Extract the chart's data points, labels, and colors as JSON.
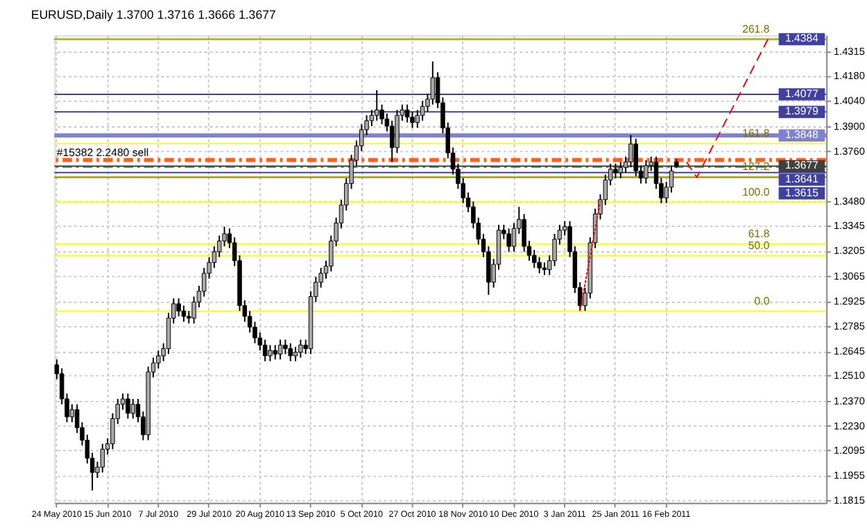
{
  "chart_data": {
    "type": "candlestick",
    "title": "EURUSD,Daily  1.3700 1.3716 1.3666 1.3677",
    "categories": [
      "24 May 2010",
      null,
      null,
      null,
      null,
      null,
      null,
      null,
      null,
      null,
      "15 Jun 2010",
      null,
      null,
      null,
      null,
      null,
      null,
      null,
      null,
      null,
      "7 Jul 2010",
      null,
      null,
      null,
      null,
      null,
      null,
      null,
      null,
      null,
      "29 Jul 2010",
      null,
      null,
      null,
      null,
      null,
      null,
      null,
      null,
      null,
      "20 Aug 2010",
      null,
      null,
      null,
      null,
      null,
      null,
      null,
      null,
      null,
      "13 Sep 2010",
      null,
      null,
      null,
      null,
      null,
      null,
      null,
      null,
      null,
      "5 Oct 2010",
      null,
      null,
      null,
      null,
      null,
      null,
      null,
      null,
      null,
      "27 Oct 2010",
      null,
      null,
      null,
      null,
      null,
      null,
      null,
      null,
      null,
      "18 Nov 2010",
      null,
      null,
      null,
      null,
      null,
      null,
      null,
      null,
      null,
      "10 Dec 2010",
      null,
      null,
      null,
      null,
      null,
      null,
      null,
      null,
      null,
      "3 Jan 2011",
      null,
      null,
      null,
      null,
      null,
      null,
      null,
      null,
      null,
      "25 Jan 2011",
      null,
      null,
      null,
      null,
      null,
      null,
      null,
      null,
      null,
      "16 Feb 2011",
      null,
      null,
      null,
      null,
      null,
      null,
      null,
      null,
      null,
      null,
      null,
      null,
      null,
      null,
      null,
      null,
      null,
      null,
      null,
      null,
      null,
      null,
      null,
      null,
      null,
      null,
      null,
      null,
      null,
      null,
      null
    ],
    "ohlc": [
      [
        1.257,
        1.26,
        1.249,
        1.252
      ],
      [
        1.252,
        1.255,
        1.235,
        1.238
      ],
      [
        1.238,
        1.241,
        1.225,
        1.228
      ],
      [
        1.228,
        1.235,
        1.225,
        1.232
      ],
      [
        1.232,
        1.235,
        1.219,
        1.222
      ],
      [
        1.222,
        1.225,
        1.212,
        1.215
      ],
      [
        1.215,
        1.218,
        1.202,
        1.205
      ],
      [
        1.205,
        1.208,
        1.187,
        1.197
      ],
      [
        1.197,
        1.203,
        1.194,
        1.2
      ],
      [
        1.2,
        1.213,
        1.197,
        1.21
      ],
      [
        1.21,
        1.216,
        1.207,
        1.213
      ],
      [
        1.213,
        1.23,
        1.21,
        1.227
      ],
      [
        1.227,
        1.238,
        1.224,
        1.235
      ],
      [
        1.235,
        1.241,
        1.232,
        1.238
      ],
      [
        1.238,
        1.241,
        1.227,
        1.23
      ],
      [
        1.23,
        1.238,
        1.227,
        1.235
      ],
      [
        1.235,
        1.238,
        1.225,
        1.228
      ],
      [
        1.228,
        1.231,
        1.215,
        1.218
      ],
      [
        1.218,
        1.256,
        1.215,
        1.253
      ],
      [
        1.253,
        1.261,
        1.25,
        1.258
      ],
      [
        1.258,
        1.265,
        1.255,
        1.262
      ],
      [
        1.262,
        1.269,
        1.259,
        1.266
      ],
      [
        1.266,
        1.286,
        1.263,
        1.283
      ],
      [
        1.283,
        1.294,
        1.28,
        1.291
      ],
      [
        1.291,
        1.294,
        1.284,
        1.287
      ],
      [
        1.287,
        1.29,
        1.281,
        1.284
      ],
      [
        1.284,
        1.287,
        1.28,
        1.283
      ],
      [
        1.283,
        1.295,
        1.28,
        1.292
      ],
      [
        1.292,
        1.301,
        1.289,
        1.298
      ],
      [
        1.298,
        1.311,
        1.295,
        1.308
      ],
      [
        1.308,
        1.317,
        1.305,
        1.314
      ],
      [
        1.314,
        1.323,
        1.311,
        1.32
      ],
      [
        1.32,
        1.329,
        1.317,
        1.326
      ],
      [
        1.326,
        1.334,
        1.323,
        1.33
      ],
      [
        1.33,
        1.333,
        1.322,
        1.325
      ],
      [
        1.325,
        1.328,
        1.312,
        1.315
      ],
      [
        1.315,
        1.318,
        1.287,
        1.29
      ],
      [
        1.29,
        1.293,
        1.281,
        1.284
      ],
      [
        1.284,
        1.287,
        1.275,
        1.278
      ],
      [
        1.278,
        1.281,
        1.269,
        1.272
      ],
      [
        1.272,
        1.275,
        1.265,
        1.268
      ],
      [
        1.268,
        1.271,
        1.259,
        1.262
      ],
      [
        1.262,
        1.268,
        1.259,
        1.265
      ],
      [
        1.265,
        1.268,
        1.26,
        1.263
      ],
      [
        1.263,
        1.271,
        1.26,
        1.268
      ],
      [
        1.268,
        1.271,
        1.263,
        1.266
      ],
      [
        1.266,
        1.269,
        1.259,
        1.262
      ],
      [
        1.262,
        1.267,
        1.259,
        1.264
      ],
      [
        1.264,
        1.271,
        1.261,
        1.268
      ],
      [
        1.268,
        1.271,
        1.263,
        1.266
      ],
      [
        1.266,
        1.298,
        1.263,
        1.295
      ],
      [
        1.295,
        1.306,
        1.292,
        1.303
      ],
      [
        1.303,
        1.311,
        1.3,
        1.308
      ],
      [
        1.308,
        1.315,
        1.305,
        1.312
      ],
      [
        1.312,
        1.329,
        1.309,
        1.326
      ],
      [
        1.326,
        1.339,
        1.323,
        1.336
      ],
      [
        1.336,
        1.349,
        1.333,
        1.346
      ],
      [
        1.346,
        1.361,
        1.343,
        1.358
      ],
      [
        1.358,
        1.374,
        1.355,
        1.371
      ],
      [
        1.371,
        1.382,
        1.368,
        1.379
      ],
      [
        1.379,
        1.391,
        1.376,
        1.388
      ],
      [
        1.388,
        1.396,
        1.385,
        1.393
      ],
      [
        1.393,
        1.399,
        1.39,
        1.396
      ],
      [
        1.396,
        1.41,
        1.393,
        1.399
      ],
      [
        1.399,
        1.402,
        1.391,
        1.394
      ],
      [
        1.394,
        1.397,
        1.387,
        1.39
      ],
      [
        1.39,
        1.393,
        1.37,
        1.378
      ],
      [
        1.378,
        1.399,
        1.375,
        1.396
      ],
      [
        1.396,
        1.402,
        1.393,
        1.399
      ],
      [
        1.399,
        1.402,
        1.392,
        1.395
      ],
      [
        1.395,
        1.398,
        1.389,
        1.392
      ],
      [
        1.392,
        1.399,
        1.389,
        1.396
      ],
      [
        1.396,
        1.404,
        1.393,
        1.401
      ],
      [
        1.401,
        1.408,
        1.398,
        1.405
      ],
      [
        1.405,
        1.426,
        1.402,
        1.417
      ],
      [
        1.417,
        1.42,
        1.4,
        1.403
      ],
      [
        1.403,
        1.406,
        1.386,
        1.389
      ],
      [
        1.389,
        1.392,
        1.372,
        1.375
      ],
      [
        1.375,
        1.378,
        1.363,
        1.366
      ],
      [
        1.366,
        1.369,
        1.355,
        1.358
      ],
      [
        1.358,
        1.361,
        1.347,
        1.35
      ],
      [
        1.35,
        1.353,
        1.342,
        1.345
      ],
      [
        1.345,
        1.348,
        1.333,
        1.336
      ],
      [
        1.336,
        1.339,
        1.324,
        1.327
      ],
      [
        1.327,
        1.33,
        1.317,
        1.32
      ],
      [
        1.32,
        1.323,
        1.296,
        1.303
      ],
      [
        1.303,
        1.316,
        1.3,
        1.313
      ],
      [
        1.313,
        1.335,
        1.31,
        1.332
      ],
      [
        1.332,
        1.335,
        1.327,
        1.33
      ],
      [
        1.33,
        1.333,
        1.32,
        1.323
      ],
      [
        1.323,
        1.336,
        1.32,
        1.333
      ],
      [
        1.333,
        1.345,
        1.33,
        1.338
      ],
      [
        1.338,
        1.341,
        1.32,
        1.323
      ],
      [
        1.323,
        1.326,
        1.315,
        1.318
      ],
      [
        1.318,
        1.321,
        1.311,
        1.314
      ],
      [
        1.314,
        1.317,
        1.308,
        1.311
      ],
      [
        1.311,
        1.314,
        1.307,
        1.31
      ],
      [
        1.31,
        1.318,
        1.307,
        1.315
      ],
      [
        1.315,
        1.33,
        1.312,
        1.327
      ],
      [
        1.327,
        1.335,
        1.324,
        1.332
      ],
      [
        1.332,
        1.337,
        1.329,
        1.334
      ],
      [
        1.334,
        1.337,
        1.317,
        1.32
      ],
      [
        1.32,
        1.323,
        1.297,
        1.3
      ],
      [
        1.3,
        1.303,
        1.287,
        1.29
      ],
      [
        1.29,
        1.3,
        1.287,
        1.297
      ],
      [
        1.297,
        1.328,
        1.294,
        1.325
      ],
      [
        1.325,
        1.344,
        1.322,
        1.341
      ],
      [
        1.341,
        1.352,
        1.338,
        1.349
      ],
      [
        1.349,
        1.363,
        1.346,
        1.36
      ],
      [
        1.36,
        1.369,
        1.357,
        1.366
      ],
      [
        1.366,
        1.369,
        1.361,
        1.364
      ],
      [
        1.364,
        1.37,
        1.361,
        1.367
      ],
      [
        1.367,
        1.373,
        1.364,
        1.37
      ],
      [
        1.37,
        1.385,
        1.367,
        1.38
      ],
      [
        1.38,
        1.383,
        1.362,
        1.365
      ],
      [
        1.365,
        1.368,
        1.358,
        1.361
      ],
      [
        1.361,
        1.371,
        1.358,
        1.368
      ],
      [
        1.368,
        1.373,
        1.365,
        1.37
      ],
      [
        1.37,
        1.373,
        1.355,
        1.358
      ],
      [
        1.358,
        1.361,
        1.347,
        1.35
      ],
      [
        1.35,
        1.359,
        1.347,
        1.356
      ],
      [
        1.356,
        1.368,
        1.353,
        1.365
      ],
      [
        1.37,
        1.3716,
        1.3666,
        1.3677
      ],
      null,
      null,
      null,
      null,
      null,
      null,
      null,
      null,
      null,
      null,
      null,
      null,
      null,
      null,
      null,
      null,
      null,
      null,
      null,
      null,
      null,
      null,
      null,
      null,
      null,
      null,
      null,
      null,
      null
    ],
    "series": [
      {
        "type": "line",
        "color": "#ff0000",
        "line_style": "dashed",
        "values": [
          null,
          null,
          null,
          null,
          null,
          null,
          null,
          null,
          null,
          null,
          null,
          null,
          null,
          null,
          null,
          null,
          null,
          null,
          null,
          null,
          null,
          null,
          null,
          null,
          null,
          null,
          null,
          null,
          null,
          null,
          null,
          null,
          null,
          null,
          null,
          null,
          null,
          null,
          null,
          null,
          null,
          null,
          null,
          null,
          null,
          null,
          null,
          null,
          null,
          null,
          null,
          null,
          null,
          null,
          null,
          null,
          null,
          null,
          null,
          null,
          null,
          null,
          null,
          null,
          null,
          null,
          null,
          null,
          null,
          null,
          null,
          null,
          null,
          null,
          null,
          null,
          null,
          null,
          null,
          null,
          null,
          null,
          null,
          null,
          null,
          null,
          null,
          null,
          null,
          null,
          null,
          null,
          null,
          null,
          null,
          null,
          null,
          null,
          null,
          null,
          null,
          null,
          null,
          null,
          null,
          null,
          null,
          null,
          null,
          null,
          null,
          null,
          null,
          null,
          null,
          null,
          null,
          null,
          null,
          null,
          null,
          null,
          null,
          null,
          1.37,
          null,
          1.3615,
          null,
          null,
          null,
          null,
          null,
          null,
          null,
          null,
          null,
          null,
          null,
          null,
          null,
          1.4384,
          null,
          null,
          null,
          null,
          null,
          null,
          null,
          null,
          null,
          null,
          null
        ]
      },
      {
        "type": "line",
        "color": "#ff0000",
        "line_style": "dotted",
        "values": [
          null,
          null,
          null,
          null,
          null,
          null,
          null,
          null,
          null,
          null,
          null,
          null,
          null,
          null,
          null,
          null,
          null,
          null,
          null,
          null,
          null,
          null,
          null,
          null,
          null,
          null,
          null,
          null,
          null,
          null,
          null,
          null,
          null,
          null,
          null,
          null,
          null,
          null,
          null,
          null,
          null,
          null,
          null,
          null,
          null,
          null,
          null,
          null,
          null,
          null,
          null,
          null,
          null,
          null,
          null,
          null,
          null,
          null,
          null,
          null,
          null,
          null,
          null,
          null,
          null,
          null,
          null,
          null,
          null,
          null,
          null,
          null,
          null,
          null,
          null,
          null,
          null,
          null,
          null,
          null,
          null,
          null,
          null,
          null,
          null,
          null,
          null,
          null,
          null,
          null,
          null,
          null,
          null,
          null,
          null,
          null,
          null,
          null,
          null,
          null,
          null,
          null,
          null,
          1.287,
          null,
          null,
          null,
          1.348,
          null,
          null,
          null,
          null,
          null,
          null,
          null,
          null,
          null,
          null,
          null,
          null,
          null,
          null,
          null,
          null,
          null,
          null,
          null,
          null,
          null,
          null,
          null,
          null,
          null,
          null,
          null,
          null,
          null,
          null,
          null,
          null,
          null,
          null,
          null,
          null,
          null,
          null,
          null,
          null,
          null,
          null,
          null,
          null
        ]
      }
    ],
    "ylim": [
      1.1801,
      1.4406
    ],
    "yticks": [
      {
        "value": 1.4315,
        "label": "1.4315"
      },
      {
        "value": 1.418,
        "label": "1.4180"
      },
      {
        "value": 1.404,
        "label": "1.4040"
      },
      {
        "value": 1.39,
        "label": "1.3900"
      },
      {
        "value": 1.376,
        "label": "1.3760"
      },
      {
        "value": 1.348,
        "label": "1.3480"
      },
      {
        "value": 1.3345,
        "label": "1.3345"
      },
      {
        "value": 1.3205,
        "label": "1.3205"
      },
      {
        "value": 1.3065,
        "label": "1.3065"
      },
      {
        "value": 1.2925,
        "label": "1.2925"
      },
      {
        "value": 1.2785,
        "label": "1.2785"
      },
      {
        "value": 1.2645,
        "label": "1.2645"
      },
      {
        "value": 1.251,
        "label": "1.2510"
      },
      {
        "value": 1.237,
        "label": "1.2370"
      },
      {
        "value": 1.223,
        "label": "1.2230"
      },
      {
        "value": 1.2095,
        "label": "1.2095"
      },
      {
        "value": 1.1955,
        "label": "1.1955"
      },
      {
        "value": 1.1815,
        "label": "1.1815"
      }
    ],
    "ref_lines": [
      {
        "axis": "y",
        "value": 1.4384,
        "label": "1.4384",
        "color": "#4040a0"
      },
      {
        "axis": "y",
        "value": 1.4077,
        "label": "1.4077",
        "color": "#4040a0"
      },
      {
        "axis": "y",
        "value": 1.3979,
        "label": "1.3979",
        "color": "#4040a0"
      },
      {
        "axis": "y",
        "value": 1.3848,
        "label": "1.3848",
        "color": "#8080d0"
      },
      {
        "axis": "y",
        "value": 1.3711,
        "label": "#15382 2.2480 sell",
        "color": "#ff6020",
        "line_style": "dashdot"
      },
      {
        "axis": "y",
        "value": 1.3672,
        "color": "#20a020",
        "line_style": "dashdot"
      },
      {
        "axis": "y",
        "value": 1.3677,
        "label": "1.3677",
        "color": "#404040"
      },
      {
        "axis": "y",
        "value": 1.3641,
        "label": "1.3641",
        "color": "#4040a0"
      },
      {
        "axis": "y",
        "value": 1.3615,
        "label": "1.3615",
        "color": "#4040a0"
      },
      {
        "axis": "y",
        "value": 1.4384,
        "color": "#c0c000"
      },
      {
        "axis": "y",
        "value": 1.3802,
        "color": "#ffff00"
      },
      {
        "axis": "y",
        "value": 1.3618,
        "color": "#c0c000"
      },
      {
        "axis": "y",
        "value": 1.3476,
        "color": "#ffff00"
      },
      {
        "axis": "y",
        "value": 1.3243,
        "color": "#ffff00"
      },
      {
        "axis": "y",
        "value": 1.3177,
        "color": "#ffff00"
      },
      {
        "axis": "y",
        "value": 1.2869,
        "color": "#ffff00"
      }
    ],
    "annotations": [
      {
        "text": "261.8",
        "y": 1.4384
      },
      {
        "text": "161.8",
        "y": 1.3802
      },
      {
        "text": "127.2",
        "y": 1.3618
      },
      {
        "text": "100.0",
        "y": 1.3476
      },
      {
        "text": "61.8",
        "y": 1.3243
      },
      {
        "text": "50.0",
        "y": 1.3177
      },
      {
        "text": "0.0",
        "y": 1.2869
      }
    ],
    "grid": true
  }
}
